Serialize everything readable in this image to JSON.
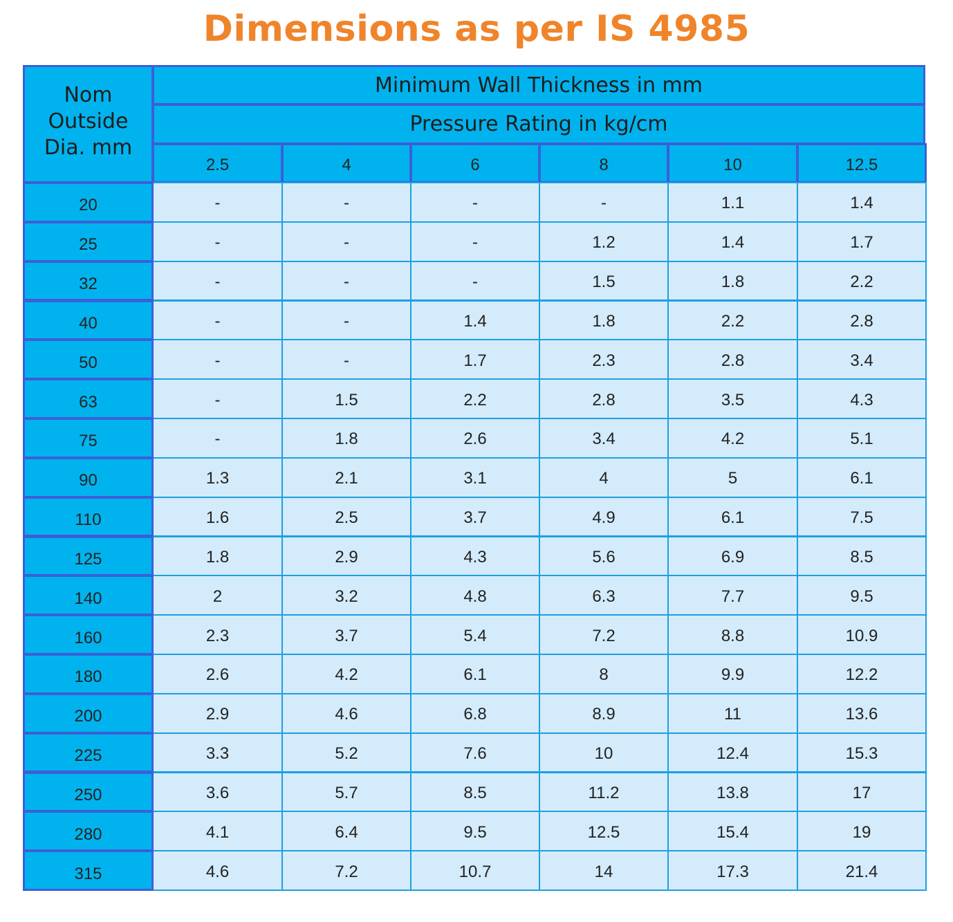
{
  "title": "Dimensions as per IS 4985",
  "table": {
    "corner": [
      "Nom",
      "Outside",
      "Dia. mm"
    ],
    "group_header": "Minimum Wall Thickness in mm",
    "sub_header": "Pressure Rating in kg/cm",
    "columns": [
      2.5,
      4,
      6,
      8,
      10,
      12.5
    ],
    "rows": [
      {
        "label": 20,
        "cells": [
          "-",
          "-",
          "-",
          "-",
          1.1,
          1.4
        ]
      },
      {
        "label": 25,
        "cells": [
          "-",
          "-",
          "-",
          1.2,
          1.4,
          1.7
        ]
      },
      {
        "label": 32,
        "cells": [
          "-",
          "-",
          "-",
          1.5,
          1.8,
          2.2
        ]
      },
      {
        "label": 40,
        "cells": [
          "-",
          "-",
          1.4,
          1.8,
          2.2,
          2.8
        ]
      },
      {
        "label": 50,
        "cells": [
          "-",
          "-",
          1.7,
          2.3,
          2.8,
          3.4
        ]
      },
      {
        "label": 63,
        "cells": [
          "-",
          1.5,
          2.2,
          2.8,
          3.5,
          4.3
        ]
      },
      {
        "label": 75,
        "cells": [
          "-",
          1.8,
          2.6,
          3.4,
          4.2,
          5.1
        ]
      },
      {
        "label": 90,
        "cells": [
          1.3,
          2.1,
          3.1,
          4,
          5,
          6.1
        ]
      },
      {
        "label": 110,
        "cells": [
          1.6,
          2.5,
          3.7,
          4.9,
          6.1,
          7.5
        ]
      },
      {
        "label": 125,
        "cells": [
          1.8,
          2.9,
          4.3,
          5.6,
          6.9,
          8.5
        ]
      },
      {
        "label": 140,
        "cells": [
          2,
          3.2,
          4.8,
          6.3,
          7.7,
          9.5
        ]
      },
      {
        "label": 160,
        "cells": [
          2.3,
          3.7,
          5.4,
          7.2,
          8.8,
          10.9
        ]
      },
      {
        "label": 180,
        "cells": [
          2.6,
          4.2,
          6.1,
          8,
          9.9,
          12.2
        ]
      },
      {
        "label": 200,
        "cells": [
          2.9,
          4.6,
          6.8,
          8.9,
          11,
          13.6
        ]
      },
      {
        "label": 225,
        "cells": [
          3.3,
          5.2,
          7.6,
          10,
          12.4,
          15.3
        ]
      },
      {
        "label": 250,
        "cells": [
          3.6,
          5.7,
          8.5,
          11.2,
          13.8,
          17
        ]
      },
      {
        "label": 280,
        "cells": [
          4.1,
          6.4,
          9.5,
          12.5,
          15.4,
          19
        ]
      },
      {
        "label": 315,
        "cells": [
          4.6,
          7.2,
          10.7,
          14,
          17.3,
          21.4
        ]
      }
    ]
  }
}
